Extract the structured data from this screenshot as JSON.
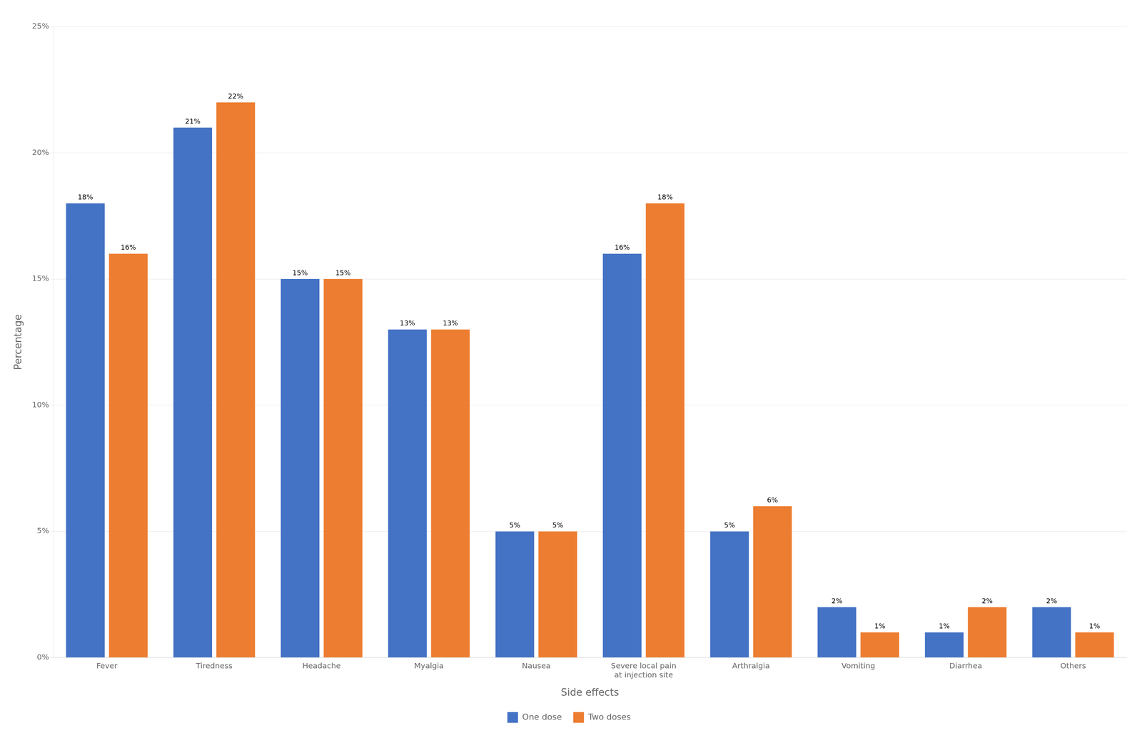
{
  "chart_data": {
    "type": "bar",
    "xlabel": "Side effects",
    "ylabel": "Percentage",
    "categories": [
      "Fever",
      "Tiredness",
      "Headache",
      "Myalgia",
      "Nausea",
      "Severe local pain\nat injection site",
      "Arthralgia",
      "Vomiting",
      "Diarrhea",
      "Others"
    ],
    "series": [
      {
        "name": "One dose",
        "color": "#4472C4",
        "values": [
          18,
          21,
          15,
          13,
          5,
          16,
          5,
          2,
          1,
          2
        ],
        "value_labels": [
          "18%",
          "21%",
          "15%",
          "13%",
          "5%",
          "16%",
          "5%",
          "2%",
          "1%",
          "2%"
        ]
      },
      {
        "name": "Two doses",
        "color": "#ED7D31",
        "values": [
          16,
          22,
          15,
          13,
          5,
          18,
          6,
          1,
          2,
          1
        ],
        "value_labels": [
          "16%",
          "22%",
          "15%",
          "13%",
          "5%",
          "18%",
          "6%",
          "1%",
          "2%",
          "1%"
        ]
      }
    ],
    "ylim": [
      0,
      25
    ],
    "yticks": [
      {
        "value": 0,
        "label": "0%"
      },
      {
        "value": 5,
        "label": "5%"
      },
      {
        "value": 10,
        "label": "10%"
      },
      {
        "value": 15,
        "label": "15%"
      },
      {
        "value": 20,
        "label": "20%"
      },
      {
        "value": 25,
        "label": "25%"
      }
    ],
    "grid": true,
    "legend": "bottom",
    "data_labels": true
  }
}
